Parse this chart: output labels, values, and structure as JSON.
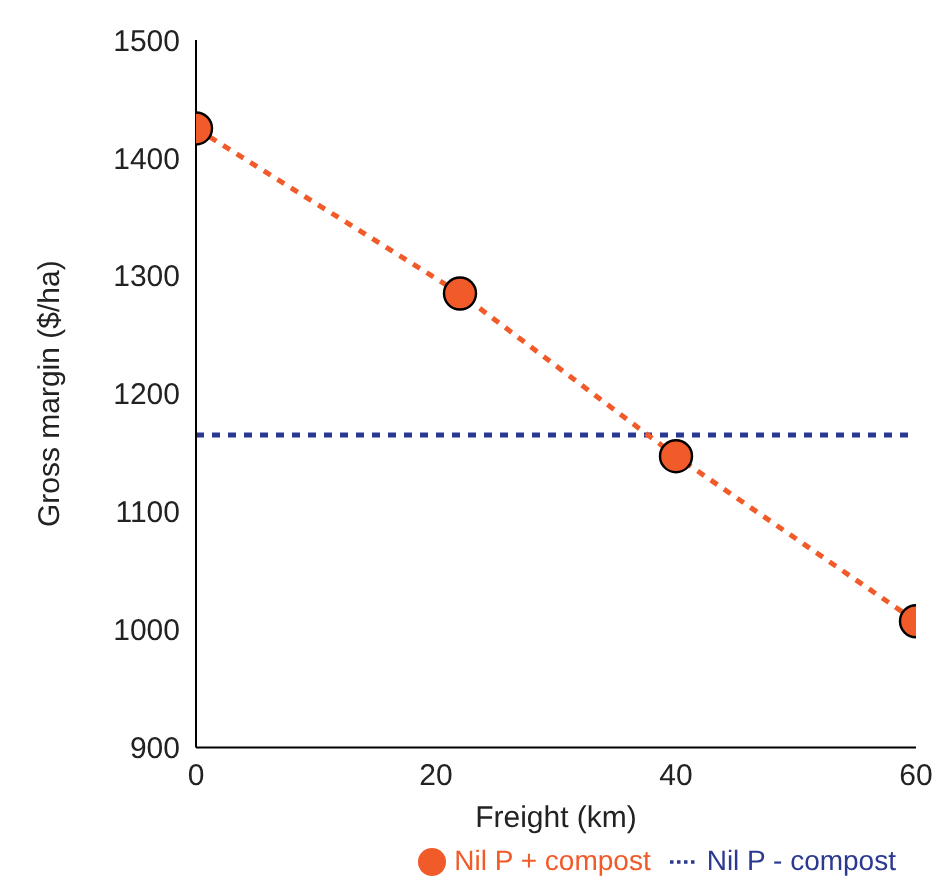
{
  "chart_data": {
    "type": "line",
    "xlabel": "Freight (km)",
    "ylabel": "Gross margin ($/ha)",
    "xlim": [
      0,
      60
    ],
    "xticks": [
      0,
      20,
      40,
      60
    ],
    "ylim": [
      900,
      1500
    ],
    "yticks": [
      900,
      1000,
      1100,
      1200,
      1300,
      1400,
      1500
    ],
    "grid": false,
    "legend": "bottom",
    "line_style": "dashed",
    "series": [
      {
        "name": "Nil P - compost",
        "color": "#2b3990",
        "x": [
          0,
          60
        ],
        "values": [
          1165,
          1165
        ],
        "marker": "none"
      },
      {
        "name": "Nil P + compost",
        "color": "#f15a29",
        "x": [
          0,
          22,
          40,
          60
        ],
        "values": [
          1425,
          1285,
          1147,
          1007
        ],
        "marker": "circle"
      }
    ]
  }
}
